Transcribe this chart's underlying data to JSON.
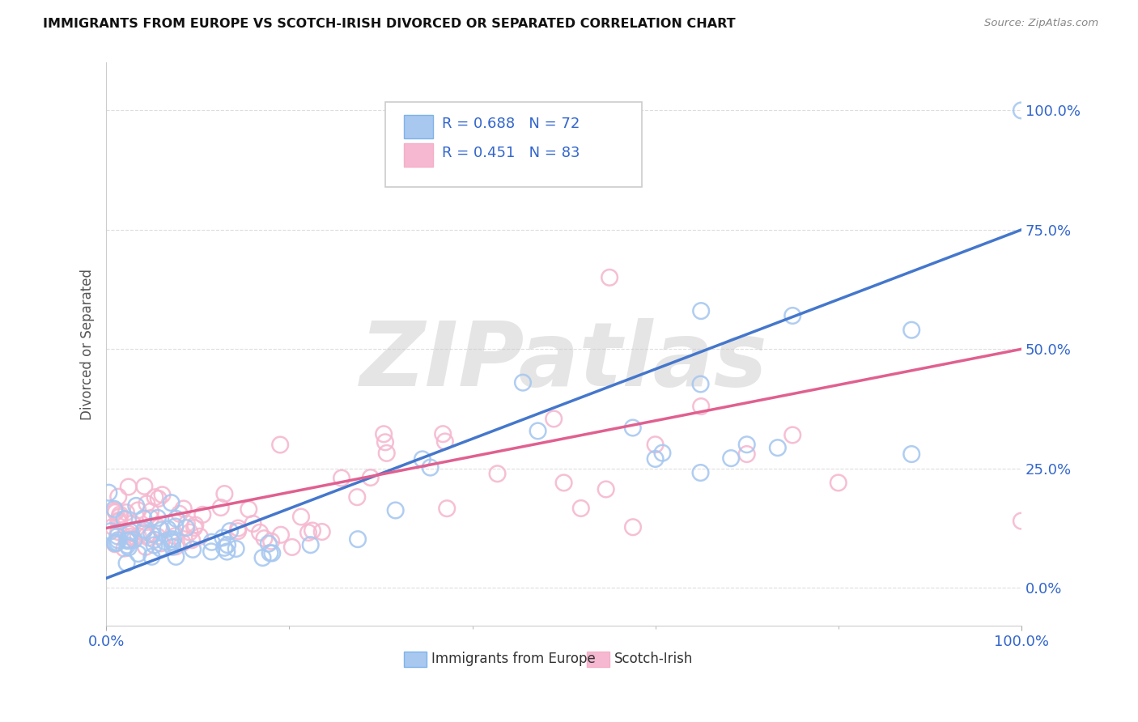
{
  "title": "IMMIGRANTS FROM EUROPE VS SCOTCH-IRISH DIVORCED OR SEPARATED CORRELATION CHART",
  "source": "Source: ZipAtlas.com",
  "ylabel": "Divorced or Separated",
  "xlim": [
    0,
    1
  ],
  "ylim": [
    -0.08,
    1.1
  ],
  "xtick_labels": [
    "0.0%",
    "100.0%"
  ],
  "ytick_labels": [
    "0.0%",
    "25.0%",
    "50.0%",
    "75.0%",
    "100.0%"
  ],
  "ytick_positions": [
    0.0,
    0.25,
    0.5,
    0.75,
    1.0
  ],
  "grid_color": "#dddddd",
  "background_color": "#ffffff",
  "watermark": "ZIPatlas",
  "legend_upper": {
    "blue_text": "R = 0.688   N = 72",
    "pink_text": "R = 0.451   N = 83"
  },
  "legend_bottom": {
    "blue_label": "Immigrants from Europe",
    "pink_label": "Scotch-Irish"
  },
  "series": [
    {
      "name": "Immigrants from Europe",
      "color": "#a8c8f0",
      "line_color": "#4477cc",
      "regression": {
        "x0": 0.0,
        "y0": 0.02,
        "x1": 1.0,
        "y1": 0.75
      }
    },
    {
      "name": "Scotch-Irish",
      "color": "#f5b8d0",
      "line_color": "#e06090",
      "regression": {
        "x0": 0.0,
        "y0": 0.125,
        "x1": 1.0,
        "y1": 0.5
      }
    }
  ]
}
